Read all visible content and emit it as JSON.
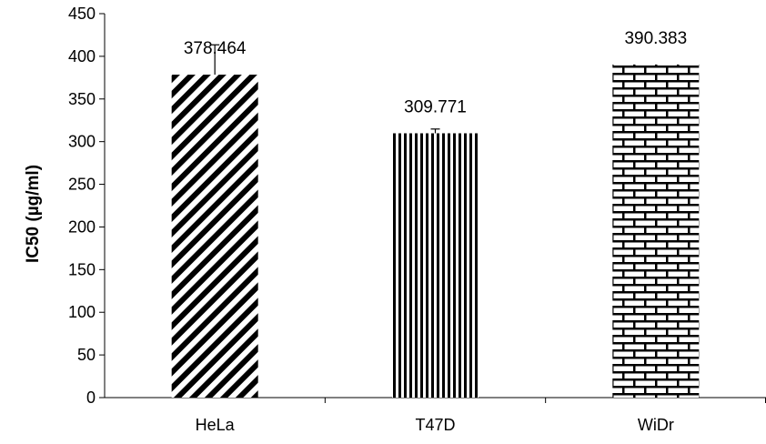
{
  "chart_data": {
    "type": "bar",
    "title": "",
    "xlabel": "",
    "ylabel": "IC50 (µg/ml)",
    "ylim": [
      0,
      450
    ],
    "yticks": [
      0,
      50,
      100,
      150,
      200,
      250,
      300,
      350,
      400,
      450
    ],
    "grid": false,
    "categories": [
      "HeLa",
      "T47D",
      "WiDr"
    ],
    "values": [
      378.464,
      309.771,
      390.383
    ],
    "value_labels": [
      "378.464",
      "309.771",
      "390.383"
    ],
    "error_plus": [
      35,
      5,
      0
    ],
    "patterns": [
      "diagonal-stripes",
      "vertical-stripes",
      "brick"
    ],
    "colors": {
      "mark": "#000000",
      "background": "#ffffff"
    }
  }
}
